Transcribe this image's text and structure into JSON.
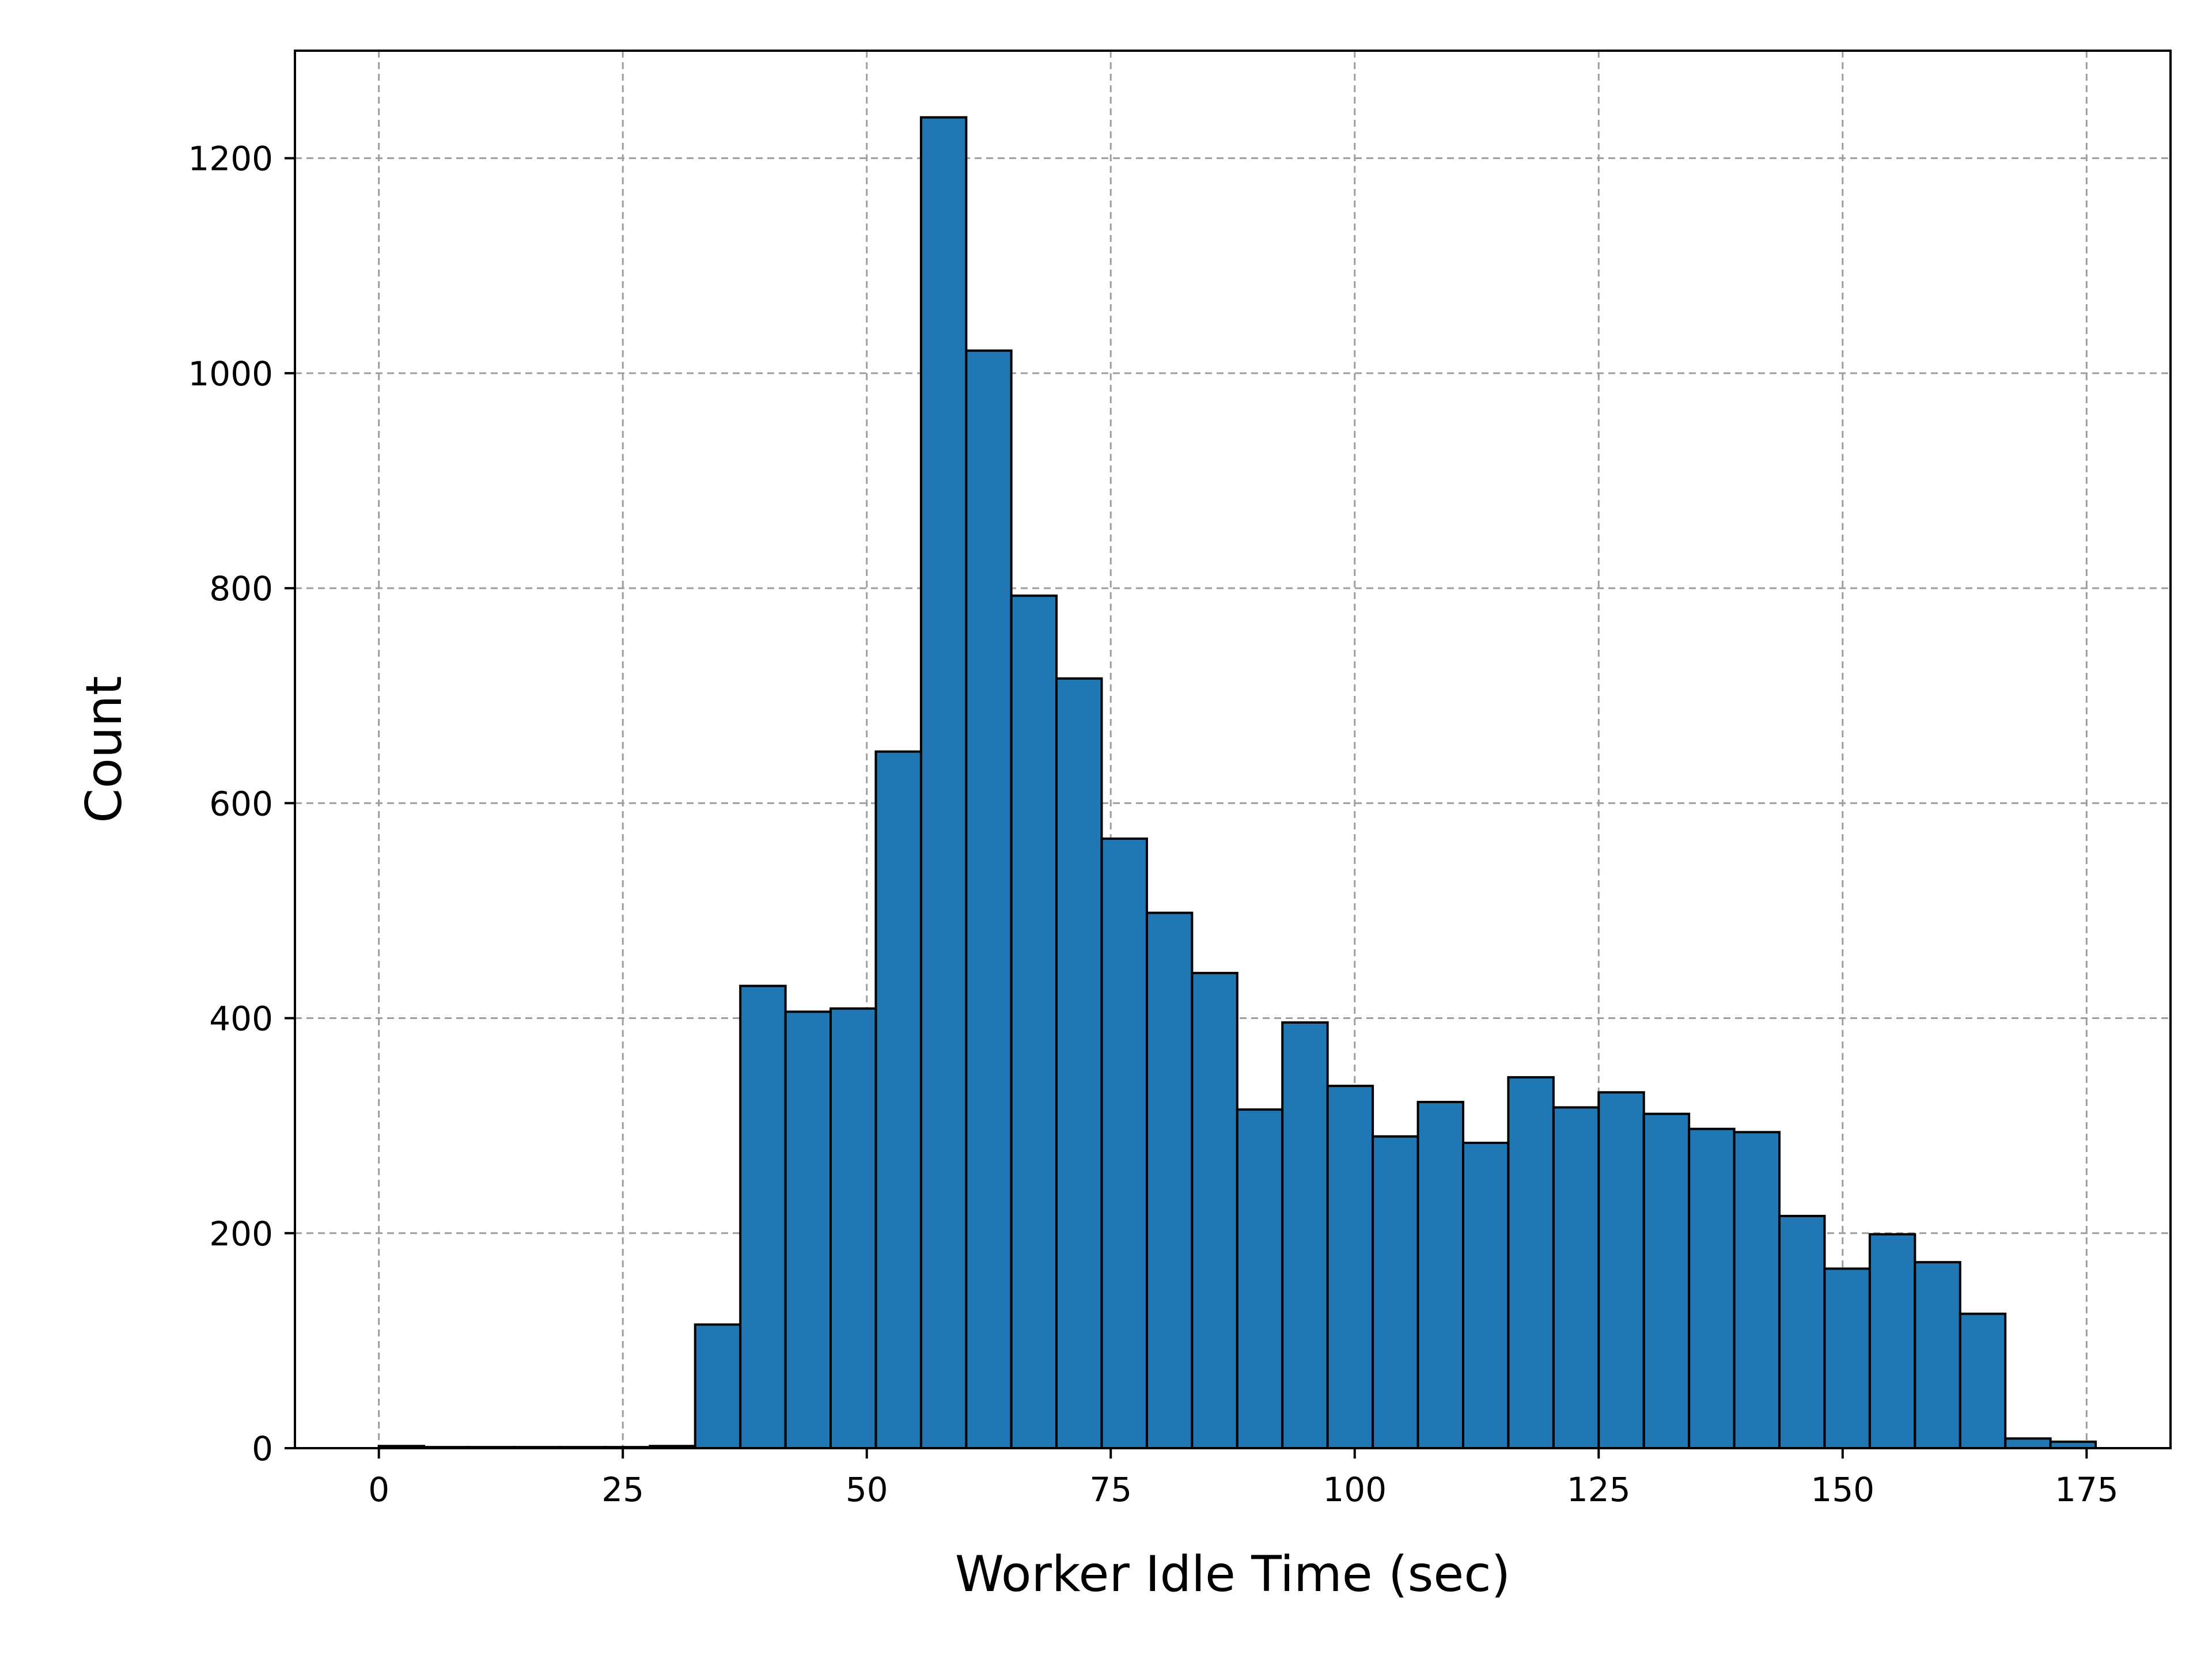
{
  "chart_data": {
    "type": "bar",
    "title": "",
    "xlabel": "Worker Idle Time (sec)",
    "ylabel": "Count",
    "xlim": [
      -8.6,
      183.6
    ],
    "ylim": [
      0,
      1300
    ],
    "xticks": [
      0,
      25,
      50,
      75,
      100,
      125,
      150,
      175
    ],
    "yticks": [
      0,
      200,
      400,
      600,
      800,
      1000,
      1200
    ],
    "grid": true,
    "colors": {
      "bar_fill": "#1f77b4",
      "bar_edge": "#000000",
      "grid": "#9e9e9e"
    },
    "bins": [
      {
        "x0": 0.0,
        "x1": 4.63,
        "count": 2
      },
      {
        "x0": 4.63,
        "x1": 9.26,
        "count": 1
      },
      {
        "x0": 9.26,
        "x1": 13.89,
        "count": 1
      },
      {
        "x0": 13.89,
        "x1": 18.52,
        "count": 1
      },
      {
        "x0": 18.52,
        "x1": 23.15,
        "count": 1
      },
      {
        "x0": 23.15,
        "x1": 27.78,
        "count": 1
      },
      {
        "x0": 27.78,
        "x1": 32.41,
        "count": 2
      },
      {
        "x0": 32.41,
        "x1": 37.04,
        "count": 115
      },
      {
        "x0": 37.04,
        "x1": 41.67,
        "count": 430
      },
      {
        "x0": 41.67,
        "x1": 46.3,
        "count": 406
      },
      {
        "x0": 46.3,
        "x1": 50.93,
        "count": 409
      },
      {
        "x0": 50.93,
        "x1": 55.56,
        "count": 648
      },
      {
        "x0": 55.56,
        "x1": 60.19,
        "count": 1238
      },
      {
        "x0": 60.19,
        "x1": 64.81,
        "count": 1021
      },
      {
        "x0": 64.81,
        "x1": 69.44,
        "count": 793
      },
      {
        "x0": 69.44,
        "x1": 74.07,
        "count": 716
      },
      {
        "x0": 74.07,
        "x1": 78.7,
        "count": 567
      },
      {
        "x0": 78.7,
        "x1": 83.33,
        "count": 498
      },
      {
        "x0": 83.33,
        "x1": 87.96,
        "count": 442
      },
      {
        "x0": 87.96,
        "x1": 92.59,
        "count": 315
      },
      {
        "x0": 92.59,
        "x1": 97.22,
        "count": 396
      },
      {
        "x0": 97.22,
        "x1": 101.85,
        "count": 337
      },
      {
        "x0": 101.85,
        "x1": 106.48,
        "count": 290
      },
      {
        "x0": 106.48,
        "x1": 111.11,
        "count": 322
      },
      {
        "x0": 111.11,
        "x1": 115.74,
        "count": 284
      },
      {
        "x0": 115.74,
        "x1": 120.37,
        "count": 345
      },
      {
        "x0": 120.37,
        "x1": 125.0,
        "count": 317
      },
      {
        "x0": 125.0,
        "x1": 129.63,
        "count": 331
      },
      {
        "x0": 129.63,
        "x1": 134.26,
        "count": 311
      },
      {
        "x0": 134.26,
        "x1": 138.89,
        "count": 297
      },
      {
        "x0": 138.89,
        "x1": 143.52,
        "count": 294
      },
      {
        "x0": 143.52,
        "x1": 148.15,
        "count": 216
      },
      {
        "x0": 148.15,
        "x1": 152.78,
        "count": 167
      },
      {
        "x0": 152.78,
        "x1": 157.41,
        "count": 199
      },
      {
        "x0": 157.41,
        "x1": 162.04,
        "count": 173
      },
      {
        "x0": 162.04,
        "x1": 166.67,
        "count": 125
      },
      {
        "x0": 166.67,
        "x1": 171.3,
        "count": 9
      },
      {
        "x0": 171.3,
        "x1": 175.93,
        "count": 6
      }
    ]
  }
}
